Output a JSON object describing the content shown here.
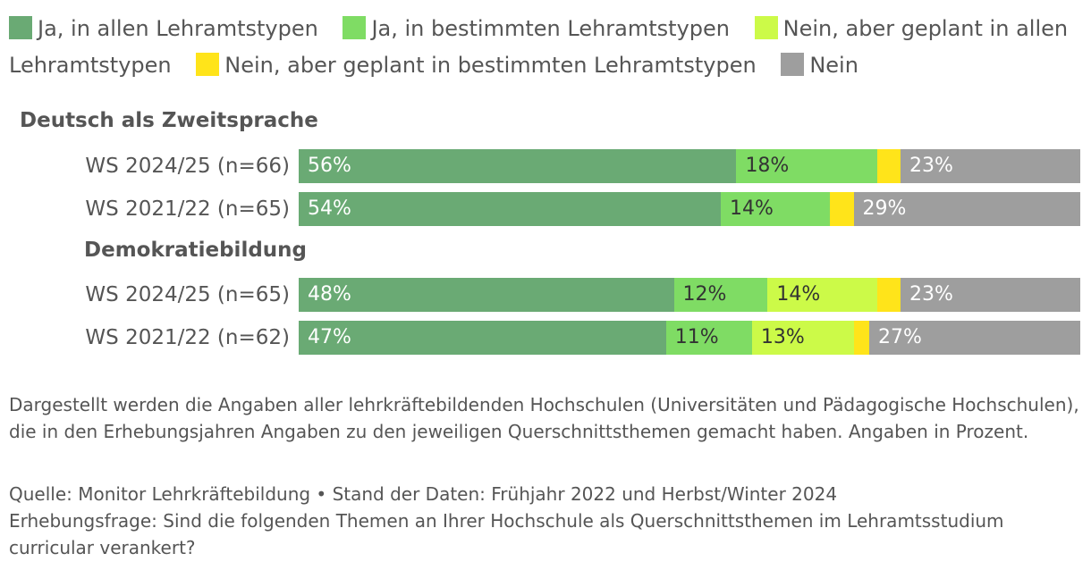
{
  "chart_data": {
    "type": "bar",
    "orientation": "horizontal-stacked",
    "colors": [
      "#6aaa74",
      "#7fdc64",
      "#ccfa48",
      "#ffe41a",
      "#9e9e9e"
    ],
    "series_names": [
      "Ja, in allen Lehramtstypen",
      "Ja, in bestimmten Lehramtstypen",
      "Nein, aber geplant in allen Lehramtstypen",
      "Nein, aber geplant in bestimmten Lehramtstypen",
      "Nein"
    ],
    "groups": [
      {
        "title": "Deutsch als Zweitsprache",
        "rows": [
          {
            "label": "WS 2024/25 (n=66)",
            "values": [
              56,
              18,
              0,
              3,
              23
            ],
            "labels": [
              "56%",
              "18%",
              "",
              "",
              "23%"
            ]
          },
          {
            "label": "WS 2021/22 (n=65)",
            "values": [
              54,
              14,
              0,
              3,
              29
            ],
            "labels": [
              "54%",
              "14%",
              "",
              "",
              "29%"
            ]
          }
        ]
      },
      {
        "title": "Demokratiebildung",
        "rows": [
          {
            "label": "WS 2024/25 (n=65)",
            "values": [
              48,
              12,
              14,
              3,
              23
            ],
            "labels": [
              "48%",
              "12%",
              "14%",
              "",
              "23%"
            ]
          },
          {
            "label": "WS 2021/22 (n=62)",
            "values": [
              47,
              11,
              13,
              2,
              27
            ],
            "labels": [
              "47%",
              "11%",
              "13%",
              "",
              "27%"
            ]
          }
        ]
      }
    ]
  },
  "notes": {
    "description": "Dargestellt werden die Angaben aller lehrkräftebildenden Hochschulen (Universitäten und Pädagogische Hochschulen), die in den Erhebungsjahren Angaben zu den jeweiligen Querschnittsthemen gemacht haben. Angaben in Prozent.",
    "source": "Quelle: Monitor Lehrkräftebildung • Stand der Daten: Frühjahr 2022 und Herbst/Winter 2024",
    "question": "Erhebungsfrage: Sind die folgenden Themen an Ihrer Hochschule als Querschnittsthemen im Lehramtsstudium curricular verankert?"
  }
}
